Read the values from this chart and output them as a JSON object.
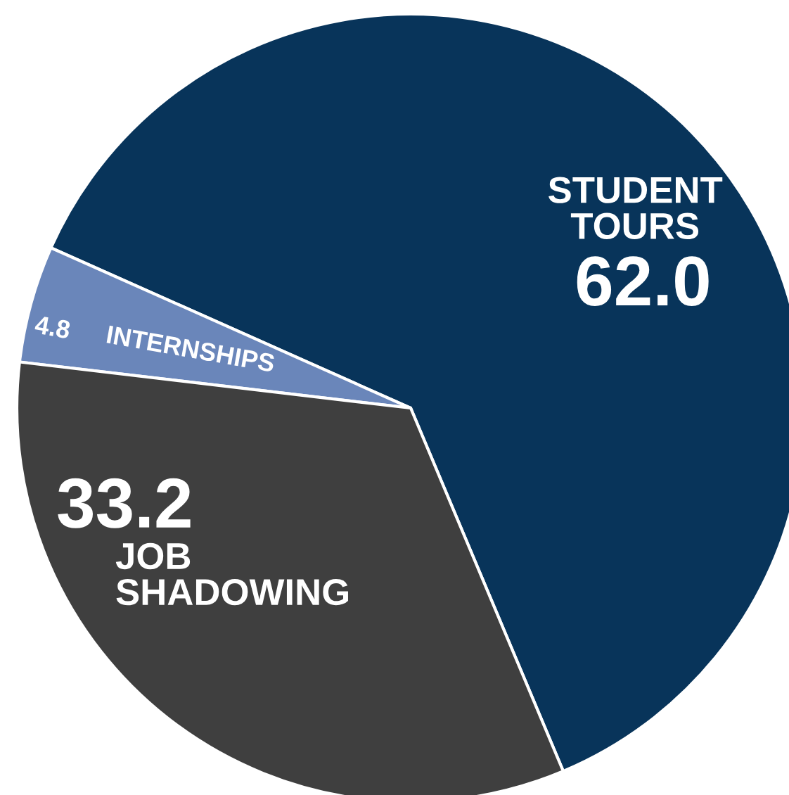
{
  "chart_data": {
    "type": "pie",
    "categories": [
      "STUDENT\nTOURS",
      "INTERNSHIPS",
      "JOB\nSHADOWING"
    ],
    "values": [
      62.0,
      4.8,
      33.2
    ],
    "colors": [
      "#08345a",
      "#6a86ba",
      "#3f3f3f"
    ],
    "value_labels": [
      "62.0",
      "4.8",
      "33.2"
    ]
  }
}
